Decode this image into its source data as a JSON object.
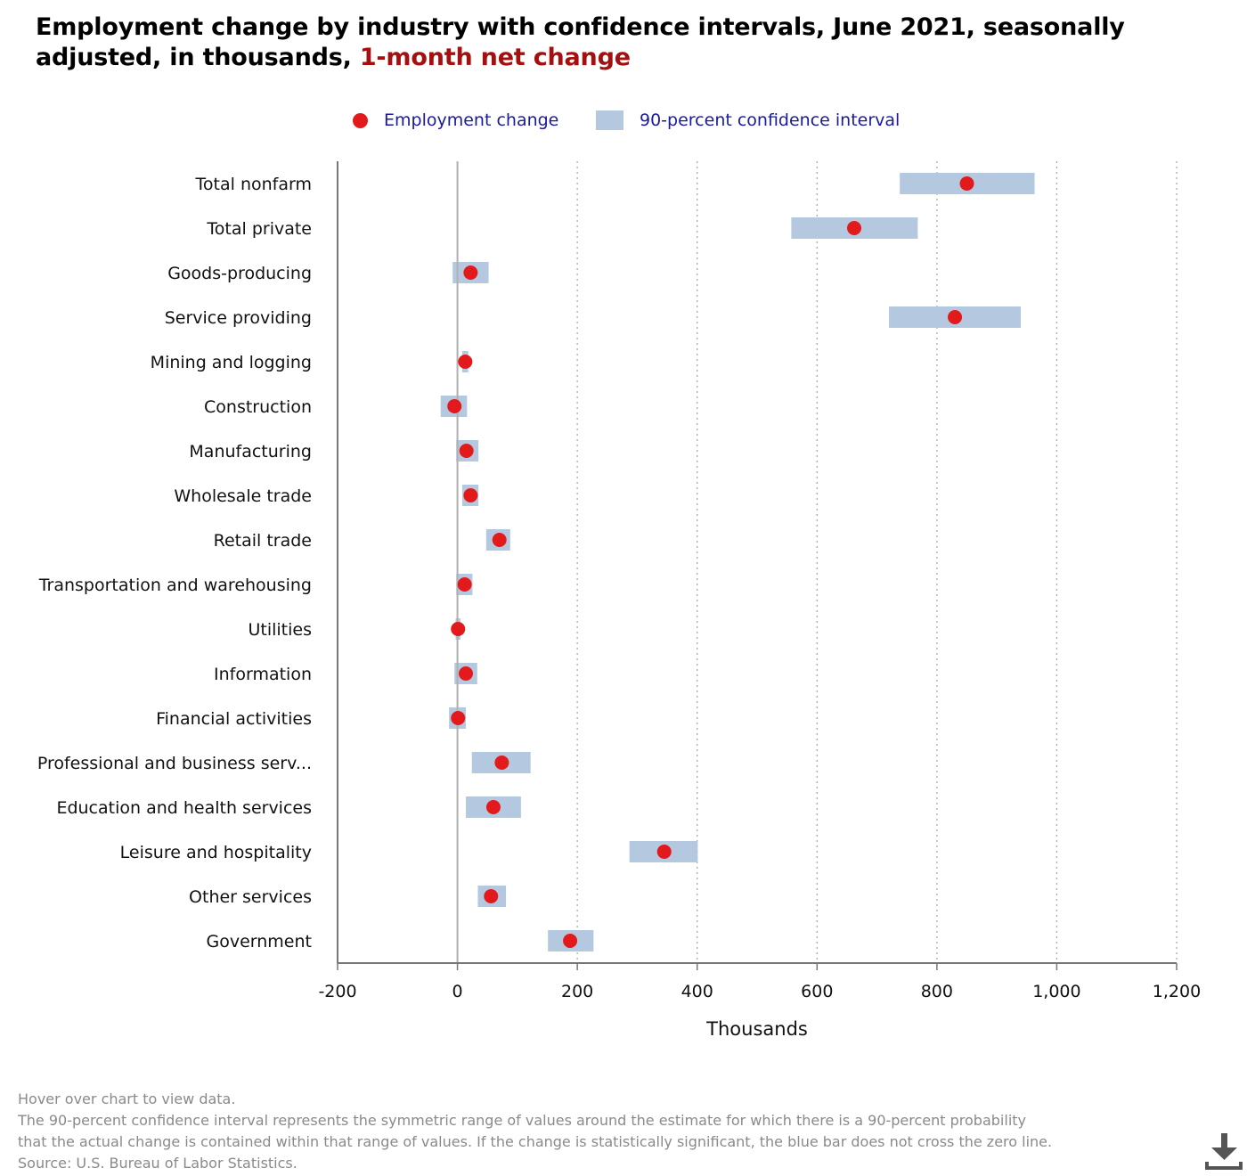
{
  "title": {
    "main": "Employment change by industry with confidence intervals, June 2021, seasonally adjusted, in thousands, ",
    "highlight": "1-month net change"
  },
  "legend": {
    "dot_label": "Employment change",
    "bar_label": "90-percent confidence interval"
  },
  "colors": {
    "dot": "#e31a1c",
    "bar": "#b4c8e0",
    "zero_line": "#b0b0b0",
    "axis": "#777777",
    "grid": "#aaaaaa",
    "title_highlight": "#a50f0f"
  },
  "chart_data": {
    "type": "dot-range",
    "xlabel": "Thousands",
    "xlim": [
      -200,
      1200
    ],
    "xticks": [
      -200,
      0,
      200,
      400,
      600,
      800,
      1000,
      1200
    ],
    "xtick_labels": [
      "-200",
      "0",
      "200",
      "400",
      "600",
      "800",
      "1,000",
      "1,200"
    ],
    "grid": "vertical dotted",
    "legend_position": "top-center",
    "categories": [
      "Total nonfarm",
      "Total private",
      "Goods-producing",
      "Service providing",
      "Mining and logging",
      "Construction",
      "Manufacturing",
      "Wholesale trade",
      "Retail trade",
      "Transportation and warehousing",
      "Utilities",
      "Information",
      "Financial activities",
      "Professional and business serv...",
      "Education and health services",
      "Leisure and hospitality",
      "Other services",
      "Government"
    ],
    "values": [
      850,
      662,
      22,
      830,
      13,
      -5,
      15,
      22,
      70,
      12,
      1,
      14,
      1,
      74,
      60,
      345,
      56,
      188
    ],
    "ci_low": [
      738,
      557,
      -8,
      720,
      8,
      -28,
      -2,
      8,
      48,
      -2,
      -3,
      -5,
      -14,
      24,
      14,
      287,
      34,
      151
    ],
    "ci_high": [
      963,
      768,
      52,
      940,
      18,
      16,
      35,
      35,
      88,
      25,
      5,
      33,
      14,
      122,
      106,
      401,
      81,
      227
    ]
  },
  "footnote": [
    "Hover over chart to view data.",
    "The 90-percent confidence interval represents the symmetric range of values around the estimate for which there is a 90-percent probability",
    "that the actual change is contained within that range of values. If the change is statistically significant, the blue bar does not cross the zero line.",
    "Source: U.S. Bureau of Labor Statistics."
  ],
  "download_icon": "download-icon"
}
